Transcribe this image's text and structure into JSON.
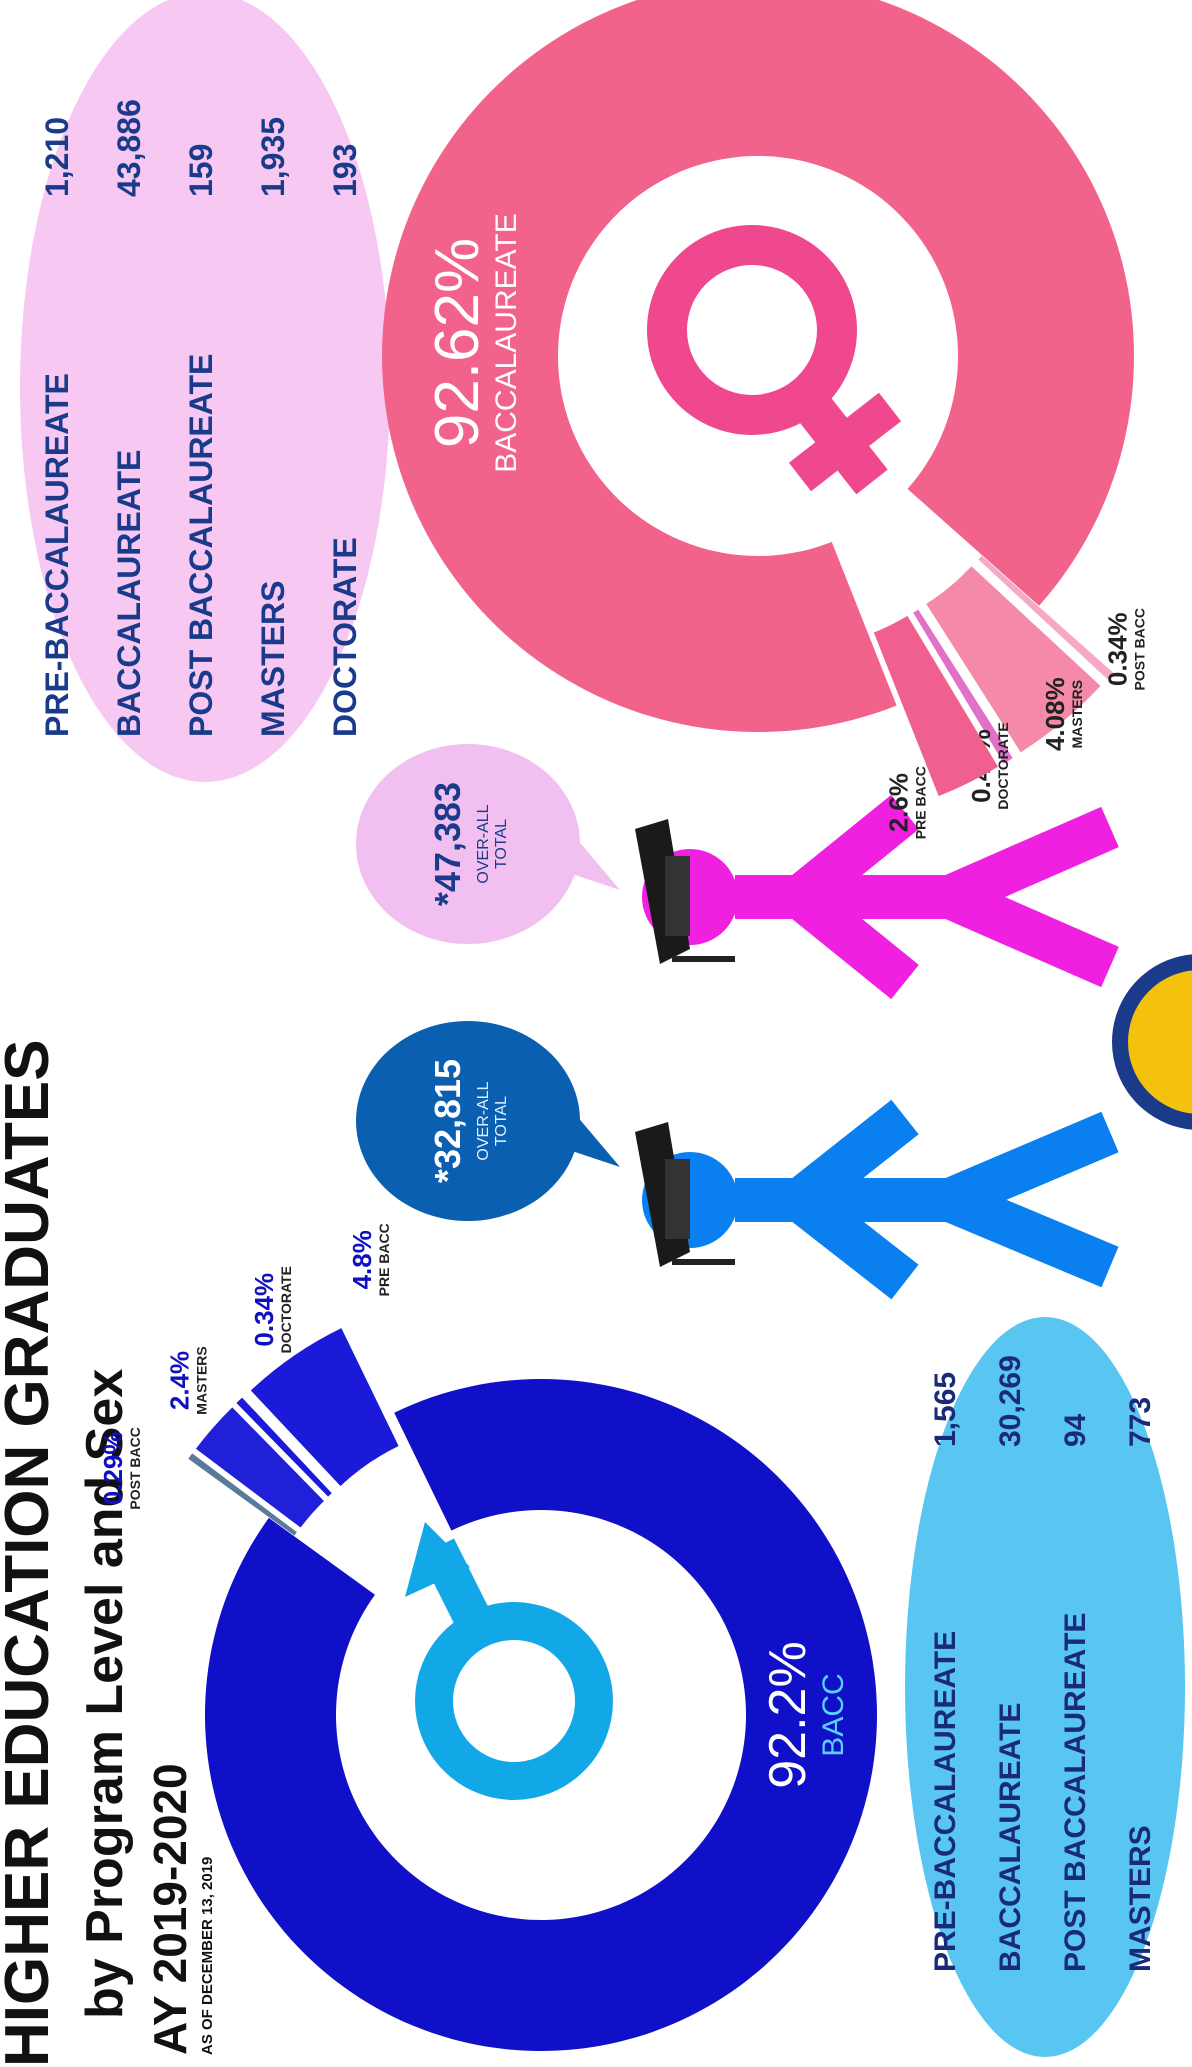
{
  "header": {
    "title": "HIGHER EDUCATION GRADUATES",
    "subtitle": "by Program Level and Sex",
    "year": "AY 2019-2020",
    "as_of": "AS OF DECEMBER 13, 2019"
  },
  "chart_data": [
    {
      "type": "pie",
      "categories": [
        "PRE BACC",
        "BACC",
        "POST BACC",
        "MASTERS",
        "DOCTORATE"
      ],
      "values": [
        4.8,
        92.2,
        0.29,
        2.4,
        0.34
      ],
      "value_labels": [
        "4.8%",
        "92.2%",
        "0.29%",
        "2.4%",
        "0.34%"
      ],
      "colors": [
        "#1a1ad8",
        "#1010c8",
        "#5a7a9a",
        "#2020d8",
        "#1a1ad8"
      ],
      "legend_labels": [
        "PRE-BACCALAUREATE",
        "BACCALAUREATE",
        "POST BACCALAUREATE",
        "MASTERS"
      ],
      "counts": [
        "1,565",
        "30,269",
        "94",
        "773"
      ],
      "total_label": "*32,815",
      "total_caption": [
        "OVER-ALL",
        "TOTAL"
      ]
    },
    {
      "type": "pie",
      "categories": [
        "PRE BACC",
        "BACCALAUREATE",
        "POST BACC",
        "MASTERS",
        "DOCTORATE"
      ],
      "values": [
        2.6,
        92.62,
        0.34,
        4.08,
        0.41
      ],
      "value_labels": [
        "2.6%",
        "92.62%",
        "0.34%",
        "4.08%",
        "0.41%"
      ],
      "colors": [
        "#f0608e",
        "#f2638c",
        "#f7a8c6",
        "#f58aa8",
        "#e070c8"
      ],
      "legend_labels": [
        "PRE-BACCALAUREATE",
        "BACCALAUREATE",
        "POST BACCALAUREATE",
        "MASTERS",
        "DOCTORATE"
      ],
      "counts": [
        "1,210",
        "43,886",
        "159",
        "1,935",
        "193"
      ],
      "total_label": "*47,383",
      "total_caption": [
        "OVER-ALL",
        "TOTAL"
      ]
    }
  ]
}
